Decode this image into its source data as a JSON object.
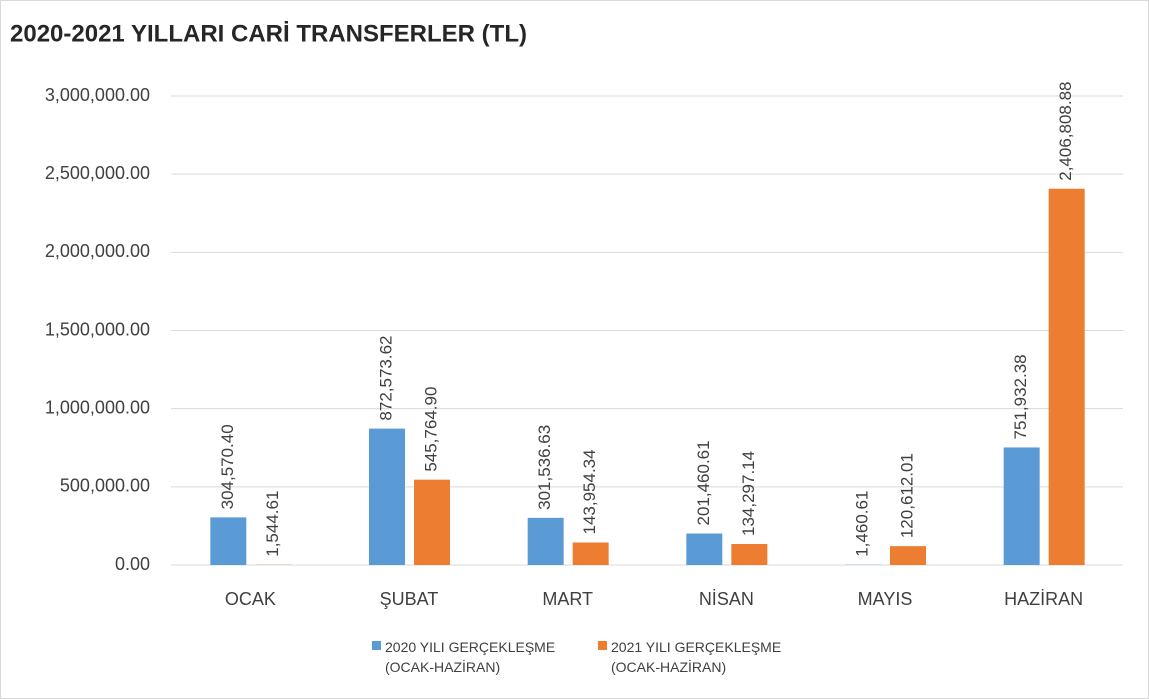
{
  "chart_data": {
    "type": "bar",
    "title": "2020-2021 YILLARI CARİ TRANSFERLER (TL)",
    "categories": [
      "OCAK",
      "ŞUBAT",
      "MART",
      "NİSAN",
      "MAYIS",
      "HAZİRAN"
    ],
    "series": [
      {
        "name": "2020 YILI GERÇEKLEŞME (OCAK-HAZİRAN)",
        "color": "#5b9bd5",
        "values": [
          304570.4,
          872573.62,
          301536.63,
          201460.61,
          1460.61,
          751932.38
        ],
        "value_labels": [
          "304,570.40",
          "872,573.62",
          "301,536.63",
          "201,460.61",
          "1,460.61",
          "751,932.38"
        ]
      },
      {
        "name": "2021 YILI GERÇEKLEŞME (OCAK-HAZİRAN)",
        "color": "#ed7d31",
        "values": [
          1544.61,
          545764.9,
          143954.34,
          134297.14,
          120612.01,
          2406808.88
        ],
        "value_labels": [
          "1,544.61",
          "545,764.90",
          "143,954.34",
          "134,297.14",
          "120,612.01",
          "2,406,808.88"
        ]
      }
    ],
    "ylim": [
      0,
      3000000
    ],
    "yticks": [
      {
        "value": 0,
        "label": "0.00"
      },
      {
        "value": 500000,
        "label": "500,000.00"
      },
      {
        "value": 1000000,
        "label": "1,000,000.00"
      },
      {
        "value": 1500000,
        "label": "1,500,000.00"
      },
      {
        "value": 2000000,
        "label": "2,000,000.00"
      },
      {
        "value": 2500000,
        "label": "2,500,000.00"
      },
      {
        "value": 3000000,
        "label": "3,000,000.00"
      }
    ],
    "grid": true,
    "legend": "bottom"
  }
}
